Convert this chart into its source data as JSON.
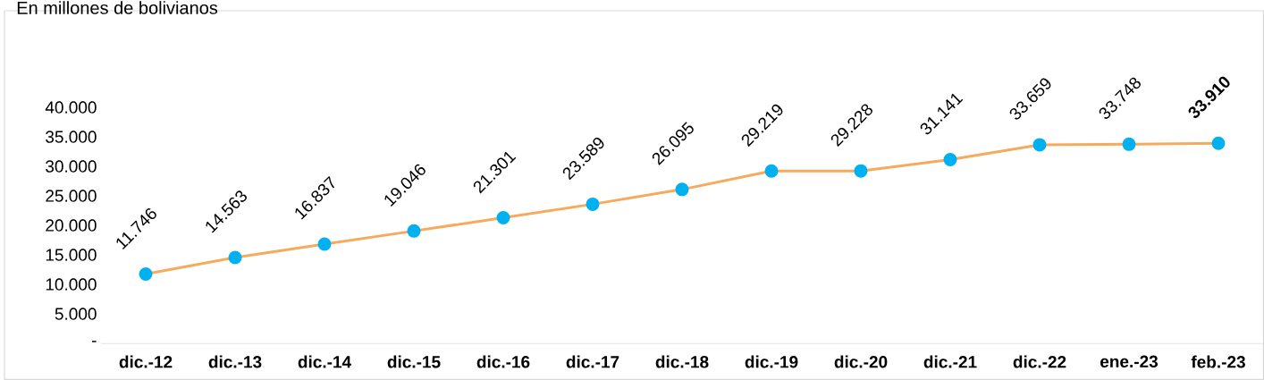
{
  "chart_data": {
    "type": "line",
    "title": "En millones de bolivianos",
    "categories": [
      "dic.-12",
      "dic.-13",
      "dic.-14",
      "dic.-15",
      "dic.-16",
      "dic.-17",
      "dic.-18",
      "dic.-19",
      "dic.-20",
      "dic.-21",
      "dic.-22",
      "ene.-23",
      "feb.-23"
    ],
    "series": [
      {
        "color": "#f6ab5c",
        "values": [
          11746,
          14563,
          16837,
          19046,
          21301,
          23589,
          26095,
          29219,
          29228,
          31141,
          33659,
          33748,
          33910
        ],
        "value_labels": [
          "11.746",
          "14.563",
          "16.837",
          "19.046",
          "21.301",
          "23.589",
          "26.095",
          "29.219",
          "29.228",
          "31.141",
          "33.659",
          "33.748",
          "**33.910**"
        ]
      }
    ],
    "marker": "circle",
    "ylim": [
      0,
      40000
    ],
    "yticks": [
      {
        "value": 0,
        "label": "-"
      },
      {
        "value": 5000,
        "label": "5.000"
      },
      {
        "value": 10000,
        "label": "10.000"
      },
      {
        "value": 15000,
        "label": "15.000"
      },
      {
        "value": 20000,
        "label": "20.000"
      },
      {
        "value": 25000,
        "label": "25.000"
      },
      {
        "value": 30000,
        "label": "30.000"
      },
      {
        "value": 35000,
        "label": "35.000"
      },
      {
        "value": 40000,
        "label": "40.000"
      }
    ]
  }
}
